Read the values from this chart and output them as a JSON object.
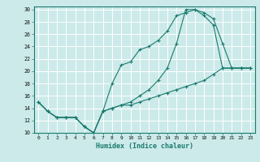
{
  "xlabel": "Humidex (Indice chaleur)",
  "bg_color": "#cceaea",
  "line_color": "#1a7a6e",
  "grid_color": "#ffffff",
  "xlim": [
    -0.5,
    23.5
  ],
  "ylim": [
    10,
    30.5
  ],
  "xticks": [
    0,
    1,
    2,
    3,
    4,
    5,
    6,
    7,
    8,
    9,
    10,
    11,
    12,
    13,
    14,
    15,
    16,
    17,
    18,
    19,
    20,
    21,
    22,
    23
  ],
  "yticks": [
    10,
    12,
    14,
    16,
    18,
    20,
    22,
    24,
    26,
    28,
    30
  ],
  "curve1_x": [
    0,
    1,
    2,
    3,
    4,
    5,
    6,
    7,
    8,
    9,
    10,
    11,
    12,
    13,
    14,
    15,
    16,
    17,
    18,
    19,
    20,
    21,
    22,
    23
  ],
  "curve1_y": [
    15,
    13.5,
    12.5,
    12.5,
    12.5,
    11,
    10,
    13.5,
    18,
    21,
    21.5,
    23.5,
    24,
    25,
    26.5,
    29,
    29.5,
    30,
    29.5,
    28.5,
    24.5,
    20.5,
    20.5,
    20.5
  ],
  "curve2_x": [
    0,
    1,
    2,
    3,
    4,
    5,
    6,
    7,
    8,
    9,
    10,
    11,
    12,
    13,
    14,
    15,
    16,
    17,
    18,
    19,
    20,
    21,
    22,
    23
  ],
  "curve2_y": [
    15,
    13.5,
    12.5,
    12.5,
    12.5,
    11,
    10,
    13.5,
    14,
    14.5,
    15,
    16,
    17,
    18.5,
    20.5,
    24.5,
    30,
    30,
    29,
    27.5,
    20.5,
    20.5,
    20.5,
    20.5
  ],
  "curve3_x": [
    0,
    1,
    2,
    3,
    4,
    5,
    6,
    7,
    8,
    9,
    10,
    11,
    12,
    13,
    14,
    15,
    16,
    17,
    18,
    19,
    20,
    21,
    22,
    23
  ],
  "curve3_y": [
    15,
    13.5,
    12.5,
    12.5,
    12.5,
    11,
    10,
    13.5,
    14,
    14.5,
    14.5,
    15,
    15.5,
    16,
    16.5,
    17,
    17.5,
    18,
    18.5,
    19.5,
    20.5,
    20.5,
    20.5,
    20.5
  ]
}
